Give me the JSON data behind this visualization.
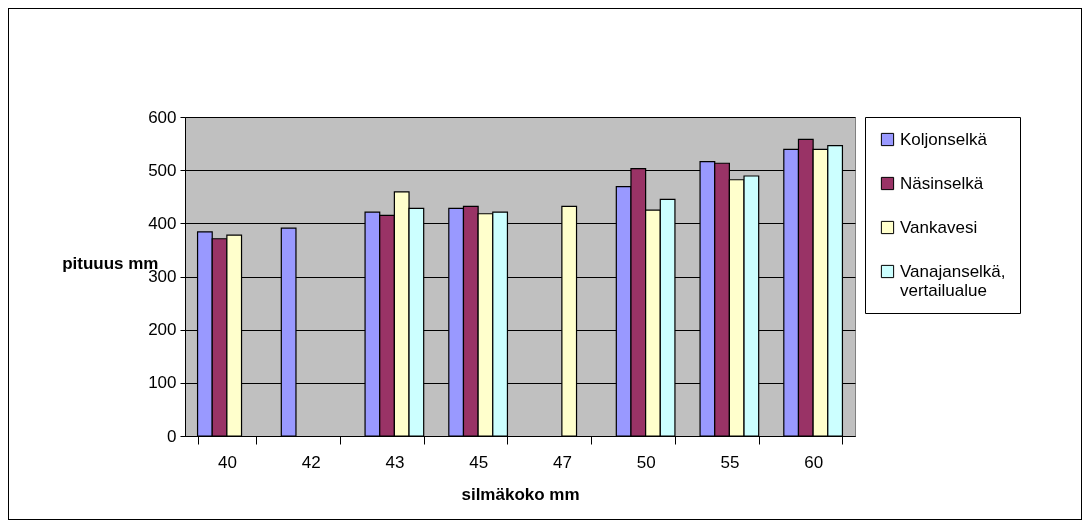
{
  "chart_data": {
    "type": "bar",
    "xlabel": "silmäkoko mm",
    "ylabel": "pituuus mm",
    "categories": [
      "40",
      "42",
      "43",
      "45",
      "47",
      "50",
      "55",
      "60"
    ],
    "series": [
      {
        "name": "Koljonselkä",
        "color": "#9999ff",
        "values": [
          384,
          391,
          421,
          428,
          null,
          469,
          516,
          539
        ]
      },
      {
        "name": "Näsinselkä",
        "color": "#993366",
        "values": [
          371,
          null,
          415,
          432,
          null,
          503,
          513,
          558
        ]
      },
      {
        "name": "Vankavesi",
        "color": "#ffffcc",
        "values": [
          378,
          null,
          459,
          418,
          432,
          425,
          482,
          539
        ]
      },
      {
        "name": "Vanajanselkä, vertailualue",
        "color": "#ccffff",
        "values": [
          null,
          null,
          428,
          421,
          null,
          445,
          489,
          546
        ]
      }
    ],
    "ylim": [
      0,
      600
    ],
    "yticks": [
      0,
      100,
      200,
      300,
      400,
      500,
      600
    ],
    "grid": "y",
    "legend": "right"
  }
}
